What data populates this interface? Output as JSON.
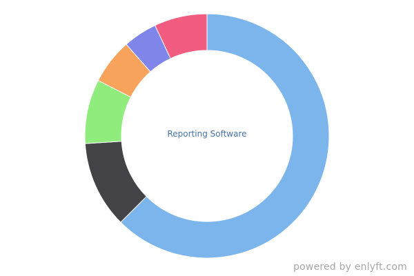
{
  "chart_data": {
    "type": "pie",
    "center_label": "Reporting Software",
    "slices": [
      {
        "value": 62.5,
        "color": "#7cb5ec"
      },
      {
        "value": 11.5,
        "color": "#434348"
      },
      {
        "value": 8.5,
        "color": "#90ed7d"
      },
      {
        "value": 6.0,
        "color": "#f7a35c"
      },
      {
        "value": 4.5,
        "color": "#8085e9"
      },
      {
        "value": 7.0,
        "color": "#f15c80"
      }
    ]
  },
  "footer": {
    "attribution": "powered by enlyft.com"
  }
}
